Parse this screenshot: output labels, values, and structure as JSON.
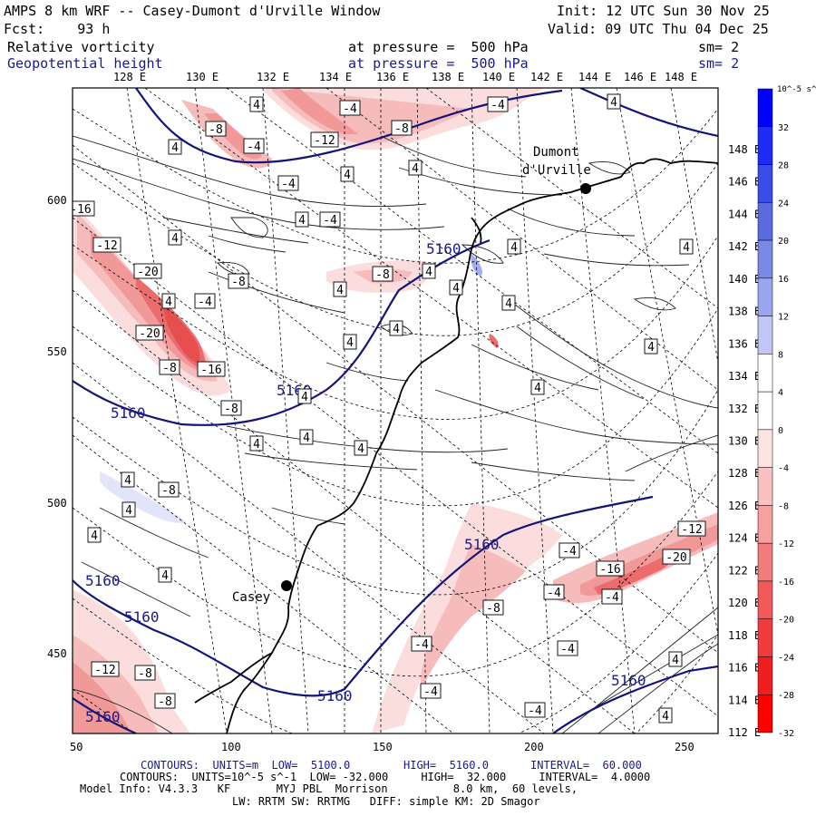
{
  "header": {
    "title": "AMPS 8 km WRF -- Casey-Dumont d'Urville Window",
    "forecast": "Fcst:    93 h",
    "init": "Init: 12 UTC Sun 30 Nov 25",
    "valid": "Valid: 09 UTC Thu 04 Dec 25",
    "field1_name": "Relative vorticity",
    "field1_level": "at pressure =  500 hPa",
    "field1_sm": "sm= 2",
    "field2_name": "Geopotential height",
    "field2_level": "at pressure =  500 hPa",
    "field2_sm": "sm= 2"
  },
  "map": {
    "top_axis_labels": [
      "128 E",
      "130 E",
      "132 E",
      "134 E",
      "136 E",
      "138 E",
      "140 E",
      "142 E",
      "144 E",
      "146 E",
      "148 E"
    ],
    "right_axis_labels": [
      "148 E",
      "146 E",
      "144 E",
      "142 E",
      "140 E",
      "138 E",
      "136 E",
      "134 E",
      "132 E",
      "130 E",
      "128 E",
      "126 E",
      "124 E",
      "122 E",
      "120 E",
      "118 E",
      "116 E",
      "114 E",
      "112 E"
    ],
    "left_axis_labels": [
      "600",
      "550",
      "500",
      "450"
    ],
    "bottom_axis_labels": [
      "50",
      "100",
      "150",
      "200",
      "250"
    ],
    "stations": [
      {
        "name": "Dumont\nd'Urville"
      },
      {
        "name": "Casey"
      }
    ],
    "height_labels": [
      "5160",
      "5160",
      "5160",
      "5160",
      "5160",
      "5160",
      "5160",
      "5160",
      "5160"
    ],
    "vorticity_labels": [
      "4",
      "4",
      "-4",
      "-4",
      "-8",
      "-8",
      "-12",
      "-4",
      "4",
      "4",
      "-4",
      "4",
      "4",
      "-4",
      "4",
      "4",
      "-8",
      "-16",
      "-12",
      "-20",
      "4",
      "-4",
      "-20",
      "-8",
      "-16",
      "-8",
      "4",
      "-8",
      "4",
      "4",
      "4",
      "4",
      "4",
      "4",
      "4",
      "4",
      "4",
      "4",
      "4",
      "4",
      "-4",
      "-4",
      "-12",
      "-16",
      "-20",
      "-4",
      "-8",
      "-4",
      "-4",
      "-4",
      "-4",
      "4",
      "4",
      "-12",
      "-8",
      "-8",
      "4",
      "-8",
      "4",
      "4",
      "4"
    ]
  },
  "colorbar": {
    "unit_label": "10^-5 s^-1",
    "ticks": [
      "32",
      "28",
      "24",
      "20",
      "16",
      "12",
      "8",
      "4",
      "0",
      "-4",
      "-8",
      "-12",
      "-16",
      "-20",
      "-24",
      "-28",
      "-32"
    ],
    "colors": [
      "#0000ff",
      "#1e2cf8",
      "#3b4de8",
      "#5a6ae0",
      "#7a88e6",
      "#9aa6ee",
      "#c0c6f6",
      "#ffffff",
      "#ffffff",
      "#fde4e4",
      "#f8c2c2",
      "#f6a0a0",
      "#f27c7c",
      "#f25a5a",
      "#f03c3c",
      "#f01e1e",
      "#ff0000"
    ]
  },
  "footer": {
    "line1_a": "CONTOURS:  UNITS=m  LOW=  5100.0",
    "line1_b": "HIGH=  5160.0",
    "line1_c": "INTERVAL=  60.000",
    "line2": "CONTOURS:  UNITS=10^-5 s^-1  LOW= -32.000     HIGH=  32.000     INTERVAL=  4.0000",
    "line3": "Model Info: V4.3.3   KF       MYJ PBL  Morrison          8.0 km,  60 levels,",
    "line4": "LW: RRTM SW: RRTMG   DIFF: simple KM: 2D Smagor"
  }
}
